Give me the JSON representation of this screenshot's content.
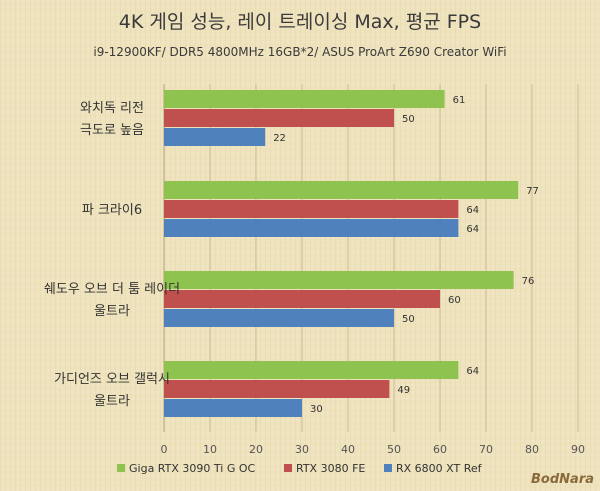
{
  "chart_data": {
    "type": "bar",
    "orientation": "horizontal",
    "title": "4K 게임 성능, 레이 트레이싱 Max, 평균 FPS",
    "subtitle": "i9-12900KF/ DDR5 4800MHz 16GB*2/ ASUS ProArt Z690 Creator WiFi",
    "categories": [
      [
        "와치독 리전",
        "극도로 높음"
      ],
      [
        "파 크라이6"
      ],
      [
        "쉐도우 오브 더 툼 레이더",
        "울트라"
      ],
      [
        "가디언즈 오브 갤럭시",
        "울트라"
      ]
    ],
    "series": [
      {
        "name": "Giga RTX 3090 Ti G OC",
        "color": "#8fc34f",
        "values": [
          61,
          77,
          76,
          64
        ]
      },
      {
        "name": "RTX 3080 FE",
        "color": "#c0504d",
        "values": [
          50,
          64,
          60,
          49
        ]
      },
      {
        "name": "RX 6800 XT Ref",
        "color": "#4f81bd",
        "values": [
          22,
          64,
          50,
          30
        ]
      }
    ],
    "xlim": [
      0,
      90
    ],
    "xticks": [
      0,
      10,
      20,
      30,
      40,
      50,
      60,
      70,
      80,
      90
    ],
    "grid": true,
    "legend": "bottom",
    "watermark": "BodNara"
  }
}
